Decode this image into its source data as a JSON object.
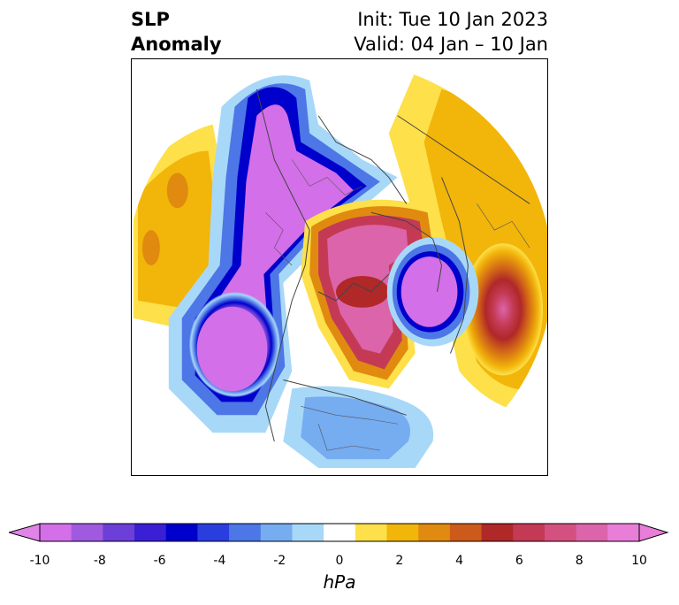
{
  "title": {
    "left_line1": "SLP",
    "left_line2": "Anomaly",
    "right_line1": "Init: Tue 10 Jan 2023",
    "right_line2": "Valid: 04 Jan – 10 Jan"
  },
  "map": {
    "projection": "north-polar-stereographic",
    "field": "sea level pressure anomaly",
    "features": [
      {
        "name": "deep-low-north-pacific-aleutian",
        "sign": "negative",
        "peak_hpa": -10
      },
      {
        "name": "low-arctic-siberia-band",
        "sign": "negative",
        "peak_hpa": -10
      },
      {
        "name": "low-north-atlantic",
        "sign": "negative",
        "peak_hpa": -10
      },
      {
        "name": "high-arctic-canada-greenland",
        "sign": "positive",
        "peak_hpa": 8
      },
      {
        "name": "high-europe-russia",
        "sign": "positive",
        "peak_hpa": 10
      },
      {
        "name": "high-north-pacific-east",
        "sign": "positive",
        "peak_hpa": 3
      },
      {
        "name": "weak-low-continental-us",
        "sign": "negative",
        "peak_hpa": -3
      }
    ]
  },
  "colorbar": {
    "unit": "hPa",
    "tick_labels": [
      "-10",
      "-8",
      "-6",
      "-4",
      "-2",
      "0",
      "2",
      "4",
      "6",
      "8",
      "10"
    ],
    "extend": "both",
    "colors": [
      "#d36fe8",
      "#a05ae0",
      "#6b3fd8",
      "#3a1fd4",
      "#0000cc",
      "#2a3ee0",
      "#4d76e6",
      "#76acf0",
      "#a8d8f8",
      "#ffffff",
      "#fde04a",
      "#f2b50a",
      "#e08a10",
      "#cc5a1a",
      "#b02828",
      "#c43a55",
      "#d45080",
      "#dc64aa",
      "#e87ed8"
    ]
  }
}
